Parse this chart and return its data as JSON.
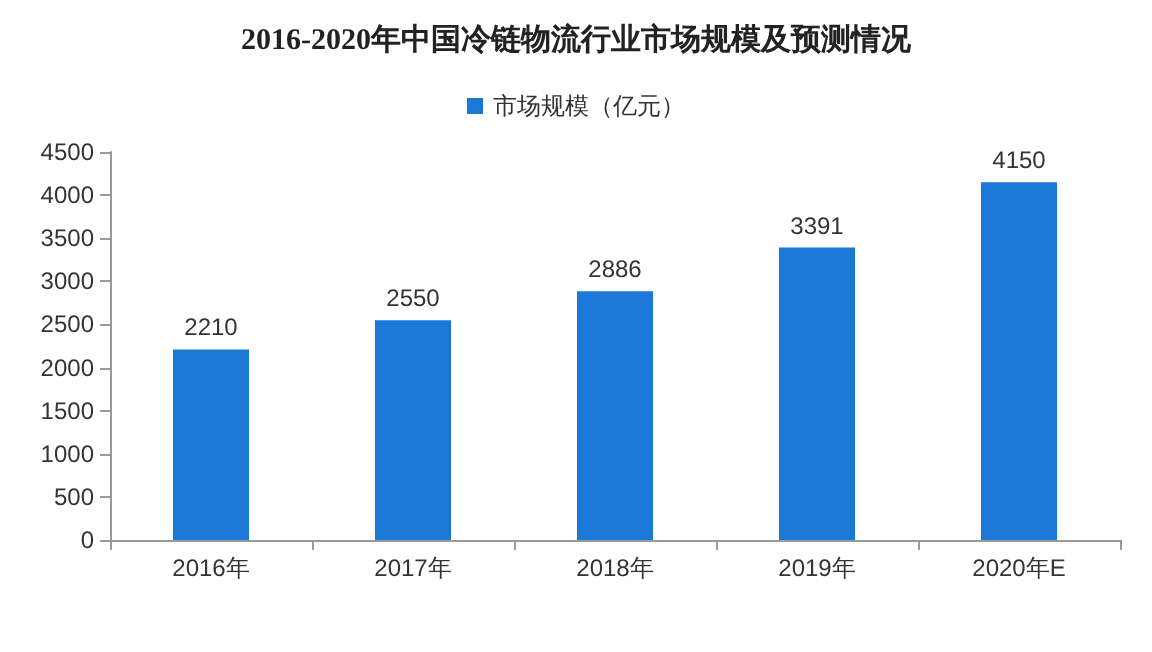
{
  "chart_data": {
    "type": "bar",
    "title": "2016-2020年中国冷链物流行业市场规模及预测情况",
    "categories": [
      "2016年",
      "2017年",
      "2018年",
      "2019年",
      "2020年E"
    ],
    "series": [
      {
        "name": "市场规模（亿元）",
        "color": "#1b78d6",
        "values": [
          2210,
          2550,
          2886,
          3391,
          4150
        ]
      }
    ],
    "ylim": [
      0,
      4500
    ],
    "yticks": [
      0,
      500,
      1000,
      1500,
      2000,
      2500,
      3000,
      3500,
      4000,
      4500
    ],
    "data_labels": true,
    "legend": "top",
    "grid": false
  }
}
